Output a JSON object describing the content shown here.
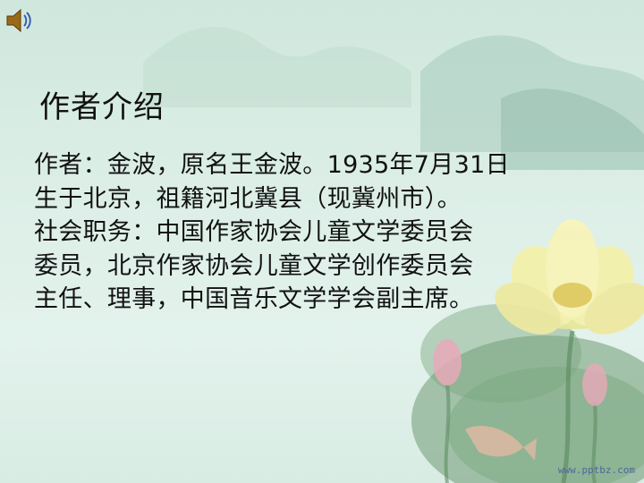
{
  "slide": {
    "title": "作者介绍",
    "lines": [
      "作者：金波，原名王金波。1935年7月31日",
      "生于北京，祖籍河北冀县（现冀州市）。",
      "社会职务：中国作家协会儿童文学委员会",
      "委员，北京作家协会儿童文学创作委员会",
      "主任、理事，中国音乐文学学会副主席。"
    ],
    "watermark": "www.pptbz.com"
  },
  "icons": {
    "speaker": "speaker-icon"
  },
  "colors": {
    "background": "#dbeee6",
    "text": "#111111",
    "lotus_petal": "#f4f0a8",
    "lotus_leaf": "#6f9a72",
    "bud": "#e9a9b8"
  }
}
